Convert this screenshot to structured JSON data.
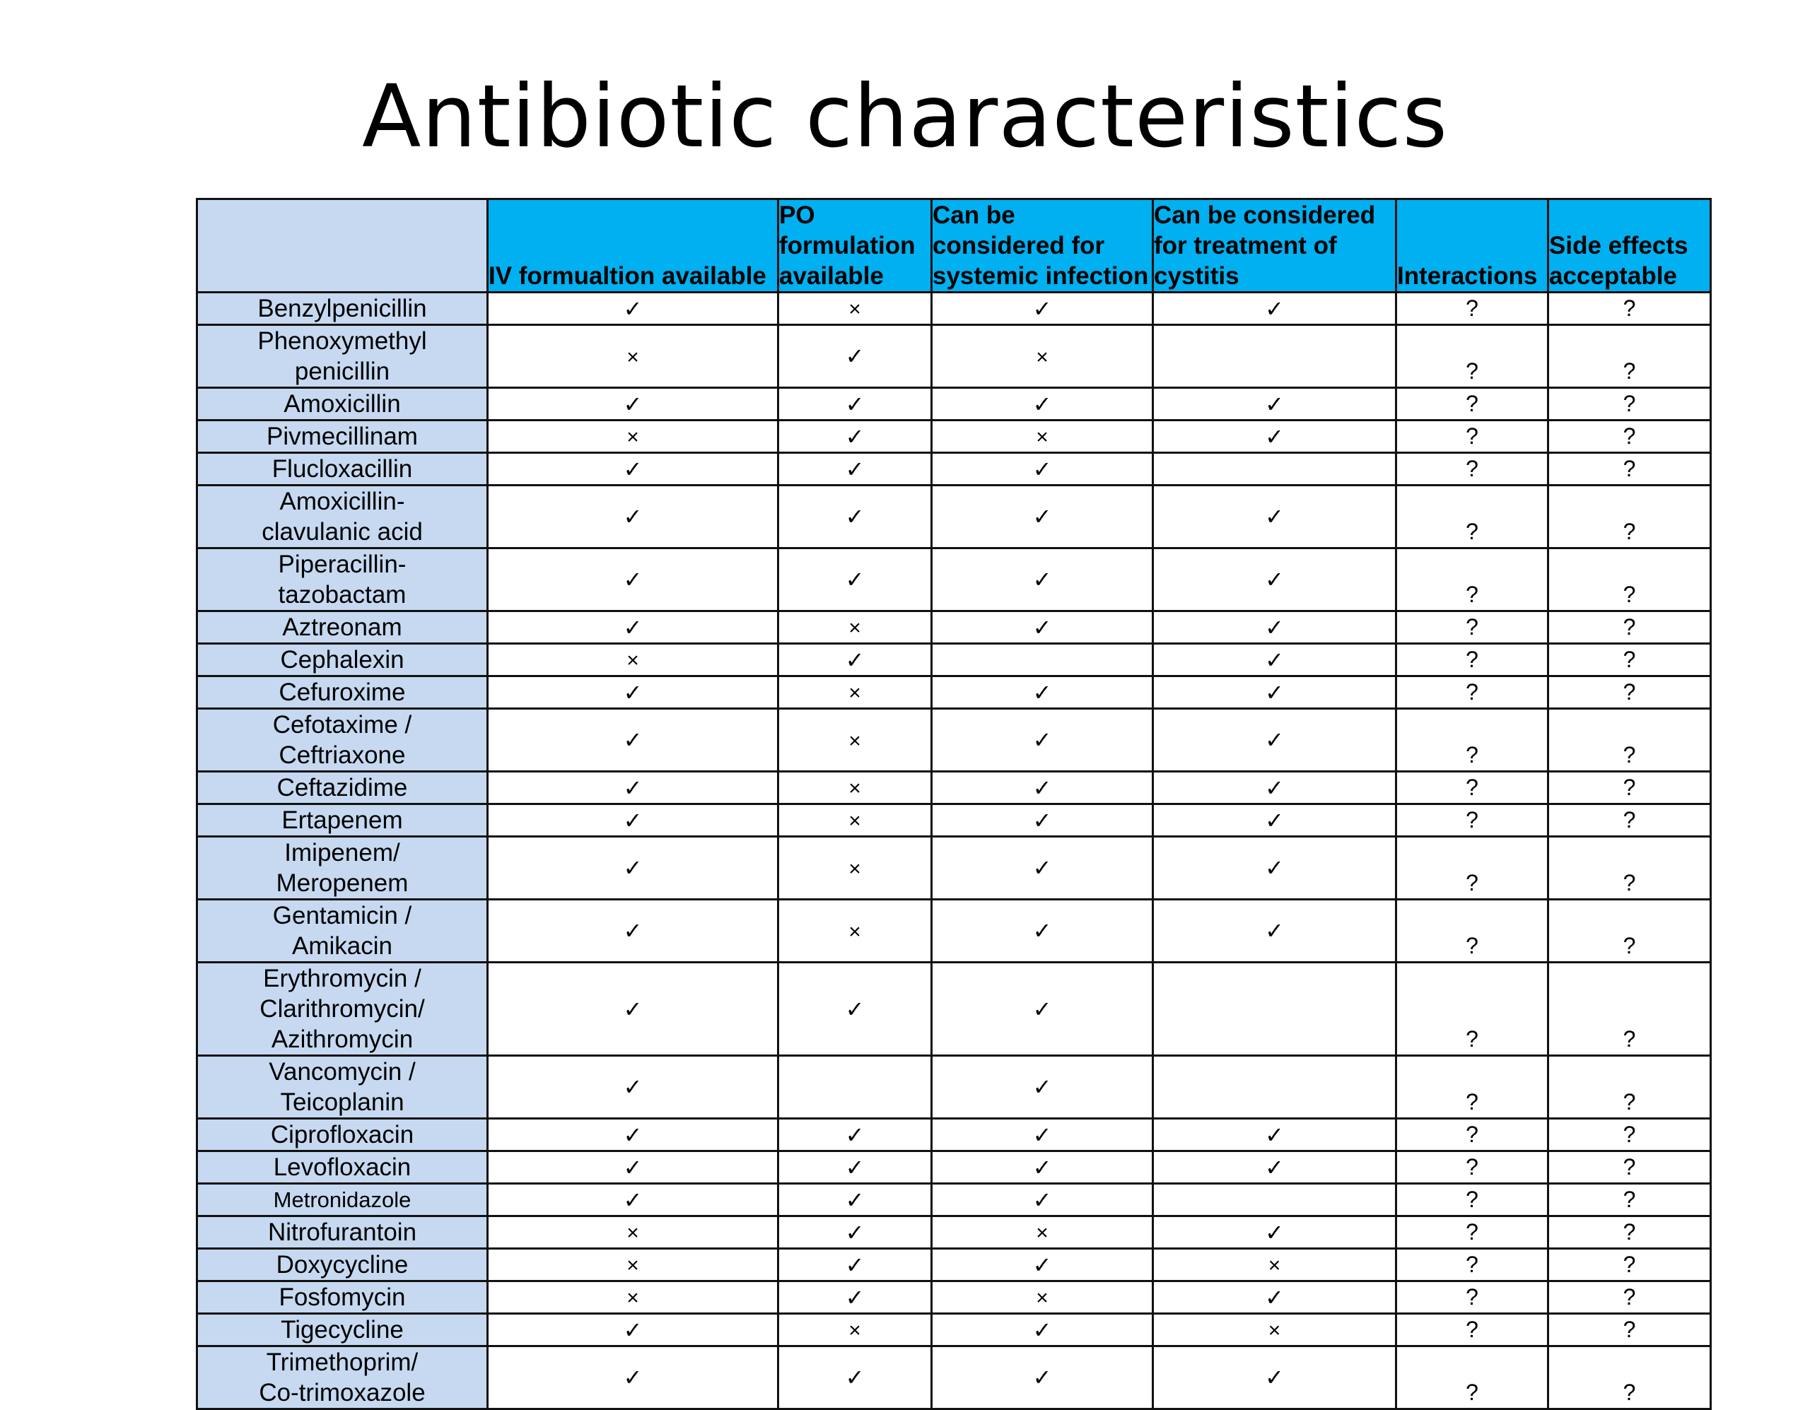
{
  "title": "Antibiotic characteristics",
  "columns": [
    "",
    "IV formualtion available",
    "PO formulation available",
    "Can be considered for systemic infection",
    "Can be considered for treatment of cystitis",
    "Interactions",
    "Side effects acceptable"
  ],
  "column_lines": [
    [],
    [
      "IV formualtion available"
    ],
    [
      "PO",
      "formulation",
      "available"
    ],
    [
      "Can be",
      "considered for",
      "systemic infection"
    ],
    [
      "Can be considered",
      "for treatment of",
      "cystitis"
    ],
    [
      "Interactions"
    ],
    [
      "Side effects",
      "acceptable"
    ]
  ],
  "rows": [
    {
      "name": "Benzylpenicillin",
      "lines": [
        "Benzylpenicillin"
      ],
      "values": [
        "✓",
        "×",
        "✓",
        "✓",
        "?",
        "?"
      ]
    },
    {
      "name": "Phenoxymethyl penicillin",
      "lines": [
        "Phenoxymethyl",
        "penicillin"
      ],
      "values": [
        "×",
        "✓",
        "×",
        "",
        "?",
        "?"
      ]
    },
    {
      "name": "Amoxicillin",
      "lines": [
        "Amoxicillin"
      ],
      "values": [
        "✓",
        "✓",
        "✓",
        "✓",
        "?",
        "?"
      ]
    },
    {
      "name": "Pivmecillinam",
      "lines": [
        "Pivmecillinam"
      ],
      "values": [
        "×",
        "✓",
        "×",
        "✓",
        "?",
        "?"
      ]
    },
    {
      "name": "Flucloxacillin",
      "lines": [
        "Flucloxacillin"
      ],
      "values": [
        "✓",
        "✓",
        "✓",
        "",
        "?",
        "?"
      ]
    },
    {
      "name": "Amoxicillin-clavulanic acid",
      "lines": [
        "Amoxicillin-",
        "clavulanic acid"
      ],
      "values": [
        "✓",
        "✓",
        "✓",
        "✓",
        "?",
        "?"
      ]
    },
    {
      "name": "Piperacillin-tazobactam",
      "lines": [
        "Piperacillin-",
        "tazobactam"
      ],
      "values": [
        "✓",
        "✓",
        "✓",
        "✓",
        "?",
        "?"
      ]
    },
    {
      "name": "Aztreonam",
      "lines": [
        "Aztreonam"
      ],
      "values": [
        "✓",
        "×",
        "✓",
        "✓",
        "?",
        "?"
      ]
    },
    {
      "name": "Cephalexin",
      "lines": [
        "Cephalexin"
      ],
      "values": [
        "×",
        "✓",
        "",
        "✓",
        "?",
        "?"
      ]
    },
    {
      "name": "Cefuroxime",
      "lines": [
        "Cefuroxime"
      ],
      "values": [
        "✓",
        "×",
        "✓",
        "✓",
        "?",
        "?"
      ]
    },
    {
      "name": "Cefotaxime / Ceftriaxone",
      "lines": [
        "Cefotaxime /",
        "Ceftriaxone"
      ],
      "values": [
        "✓",
        "×",
        "✓",
        "✓",
        "?",
        "?"
      ]
    },
    {
      "name": "Ceftazidime",
      "lines": [
        "Ceftazidime"
      ],
      "values": [
        "✓",
        "×",
        "✓",
        "✓",
        "?",
        "?"
      ]
    },
    {
      "name": "Ertapenem",
      "lines": [
        "Ertapenem"
      ],
      "values": [
        "✓",
        "×",
        "✓",
        "✓",
        "?",
        "?"
      ]
    },
    {
      "name": "Imipenem/ Meropenem",
      "lines": [
        "Imipenem/",
        "Meropenem"
      ],
      "values": [
        "✓",
        "×",
        "✓",
        "✓",
        "?",
        "?"
      ]
    },
    {
      "name": "Gentamicin / Amikacin",
      "lines": [
        "Gentamicin /",
        "Amikacin"
      ],
      "values": [
        "✓",
        "×",
        "✓",
        "✓",
        "?",
        "?"
      ]
    },
    {
      "name": "Erythromycin / Clarithromycin/ Azithromycin",
      "lines": [
        "Erythromycin /",
        "Clarithromycin/",
        "Azithromycin"
      ],
      "values": [
        "✓",
        "✓",
        "✓",
        "",
        "?",
        "?"
      ]
    },
    {
      "name": "Vancomycin / Teicoplanin",
      "lines": [
        "Vancomycin /",
        "Teicoplanin"
      ],
      "values": [
        "✓",
        "",
        "✓",
        "",
        "?",
        "?"
      ]
    },
    {
      "name": "Ciprofloxacin",
      "lines": [
        "Ciprofloxacin"
      ],
      "values": [
        "✓",
        "✓",
        "✓",
        "✓",
        "?",
        "?"
      ]
    },
    {
      "name": "Levofloxacin",
      "lines": [
        "Levofloxacin"
      ],
      "values": [
        "✓",
        "✓",
        "✓",
        "✓",
        "?",
        "?"
      ]
    },
    {
      "name": "Metronidazole",
      "lines": [
        "Metronidazole"
      ],
      "values": [
        "✓",
        "✓",
        "✓",
        "",
        "?",
        "?"
      ],
      "small": true
    },
    {
      "name": "Nitrofurantoin",
      "lines": [
        "Nitrofurantoin"
      ],
      "values": [
        "×",
        "✓",
        "×",
        "✓",
        "?",
        "?"
      ]
    },
    {
      "name": "Doxycycline",
      "lines": [
        "Doxycycline"
      ],
      "values": [
        "×",
        "✓",
        "✓",
        "×",
        "?",
        "?"
      ]
    },
    {
      "name": "Fosfomycin",
      "lines": [
        "Fosfomycin"
      ],
      "values": [
        "×",
        "✓",
        "×",
        "✓",
        "?",
        "?"
      ]
    },
    {
      "name": "Tigecycline",
      "lines": [
        "Tigecycline"
      ],
      "values": [
        "✓",
        "×",
        "✓",
        "×",
        "?",
        "?"
      ]
    },
    {
      "name": "Trimethoprim/ Co-trimoxazole",
      "lines": [
        "Trimethoprim/",
        "Co-trimoxazole"
      ],
      "values": [
        "✓",
        "✓",
        "✓",
        "✓",
        "?",
        "?"
      ]
    }
  ]
}
